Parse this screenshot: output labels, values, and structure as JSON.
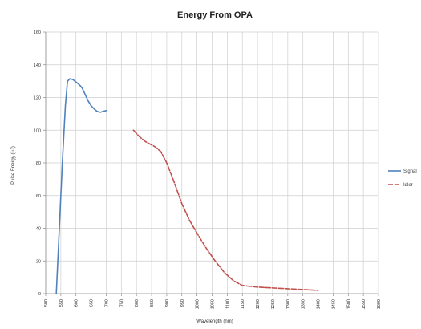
{
  "chart_data": {
    "type": "line",
    "title": "Energy From OPA",
    "xlabel": "Wavelength (nm)",
    "ylabel": "Pulse Energy (uJ)",
    "xlim": [
      500,
      1600
    ],
    "ylim": [
      0,
      160
    ],
    "x_ticks": [
      500,
      550,
      600,
      650,
      700,
      750,
      800,
      850,
      900,
      950,
      1000,
      1050,
      1100,
      1150,
      1200,
      1250,
      1300,
      1350,
      1400,
      1450,
      1500,
      1550,
      1600
    ],
    "y_ticks": [
      0,
      20,
      40,
      60,
      80,
      100,
      120,
      140,
      160
    ],
    "grid": true,
    "legend_position": "right",
    "series": [
      {
        "name": "Signal",
        "color": "#4f81bd",
        "dash": "solid",
        "points": [
          [
            535,
            0
          ],
          [
            545,
            40
          ],
          [
            555,
            80
          ],
          [
            565,
            115
          ],
          [
            572,
            130
          ],
          [
            580,
            131.5
          ],
          [
            590,
            131
          ],
          [
            600,
            129.5
          ],
          [
            610,
            128
          ],
          [
            620,
            126
          ],
          [
            630,
            122
          ],
          [
            640,
            118
          ],
          [
            650,
            115
          ],
          [
            660,
            113
          ],
          [
            670,
            111.5
          ],
          [
            680,
            111
          ],
          [
            690,
            111.5
          ],
          [
            700,
            112
          ]
        ]
      },
      {
        "name": "Idler",
        "color": "#c0504d",
        "dash": "dashed",
        "points": [
          [
            790,
            100
          ],
          [
            810,
            96
          ],
          [
            830,
            93
          ],
          [
            860,
            90
          ],
          [
            880,
            87
          ],
          [
            900,
            80
          ],
          [
            925,
            68
          ],
          [
            950,
            55
          ],
          [
            975,
            45
          ],
          [
            1000,
            37
          ],
          [
            1030,
            28
          ],
          [
            1060,
            20
          ],
          [
            1090,
            13
          ],
          [
            1120,
            8
          ],
          [
            1150,
            5
          ],
          [
            1200,
            4
          ],
          [
            1250,
            3.5
          ],
          [
            1300,
            3
          ],
          [
            1350,
            2.5
          ],
          [
            1400,
            2
          ]
        ]
      }
    ]
  }
}
